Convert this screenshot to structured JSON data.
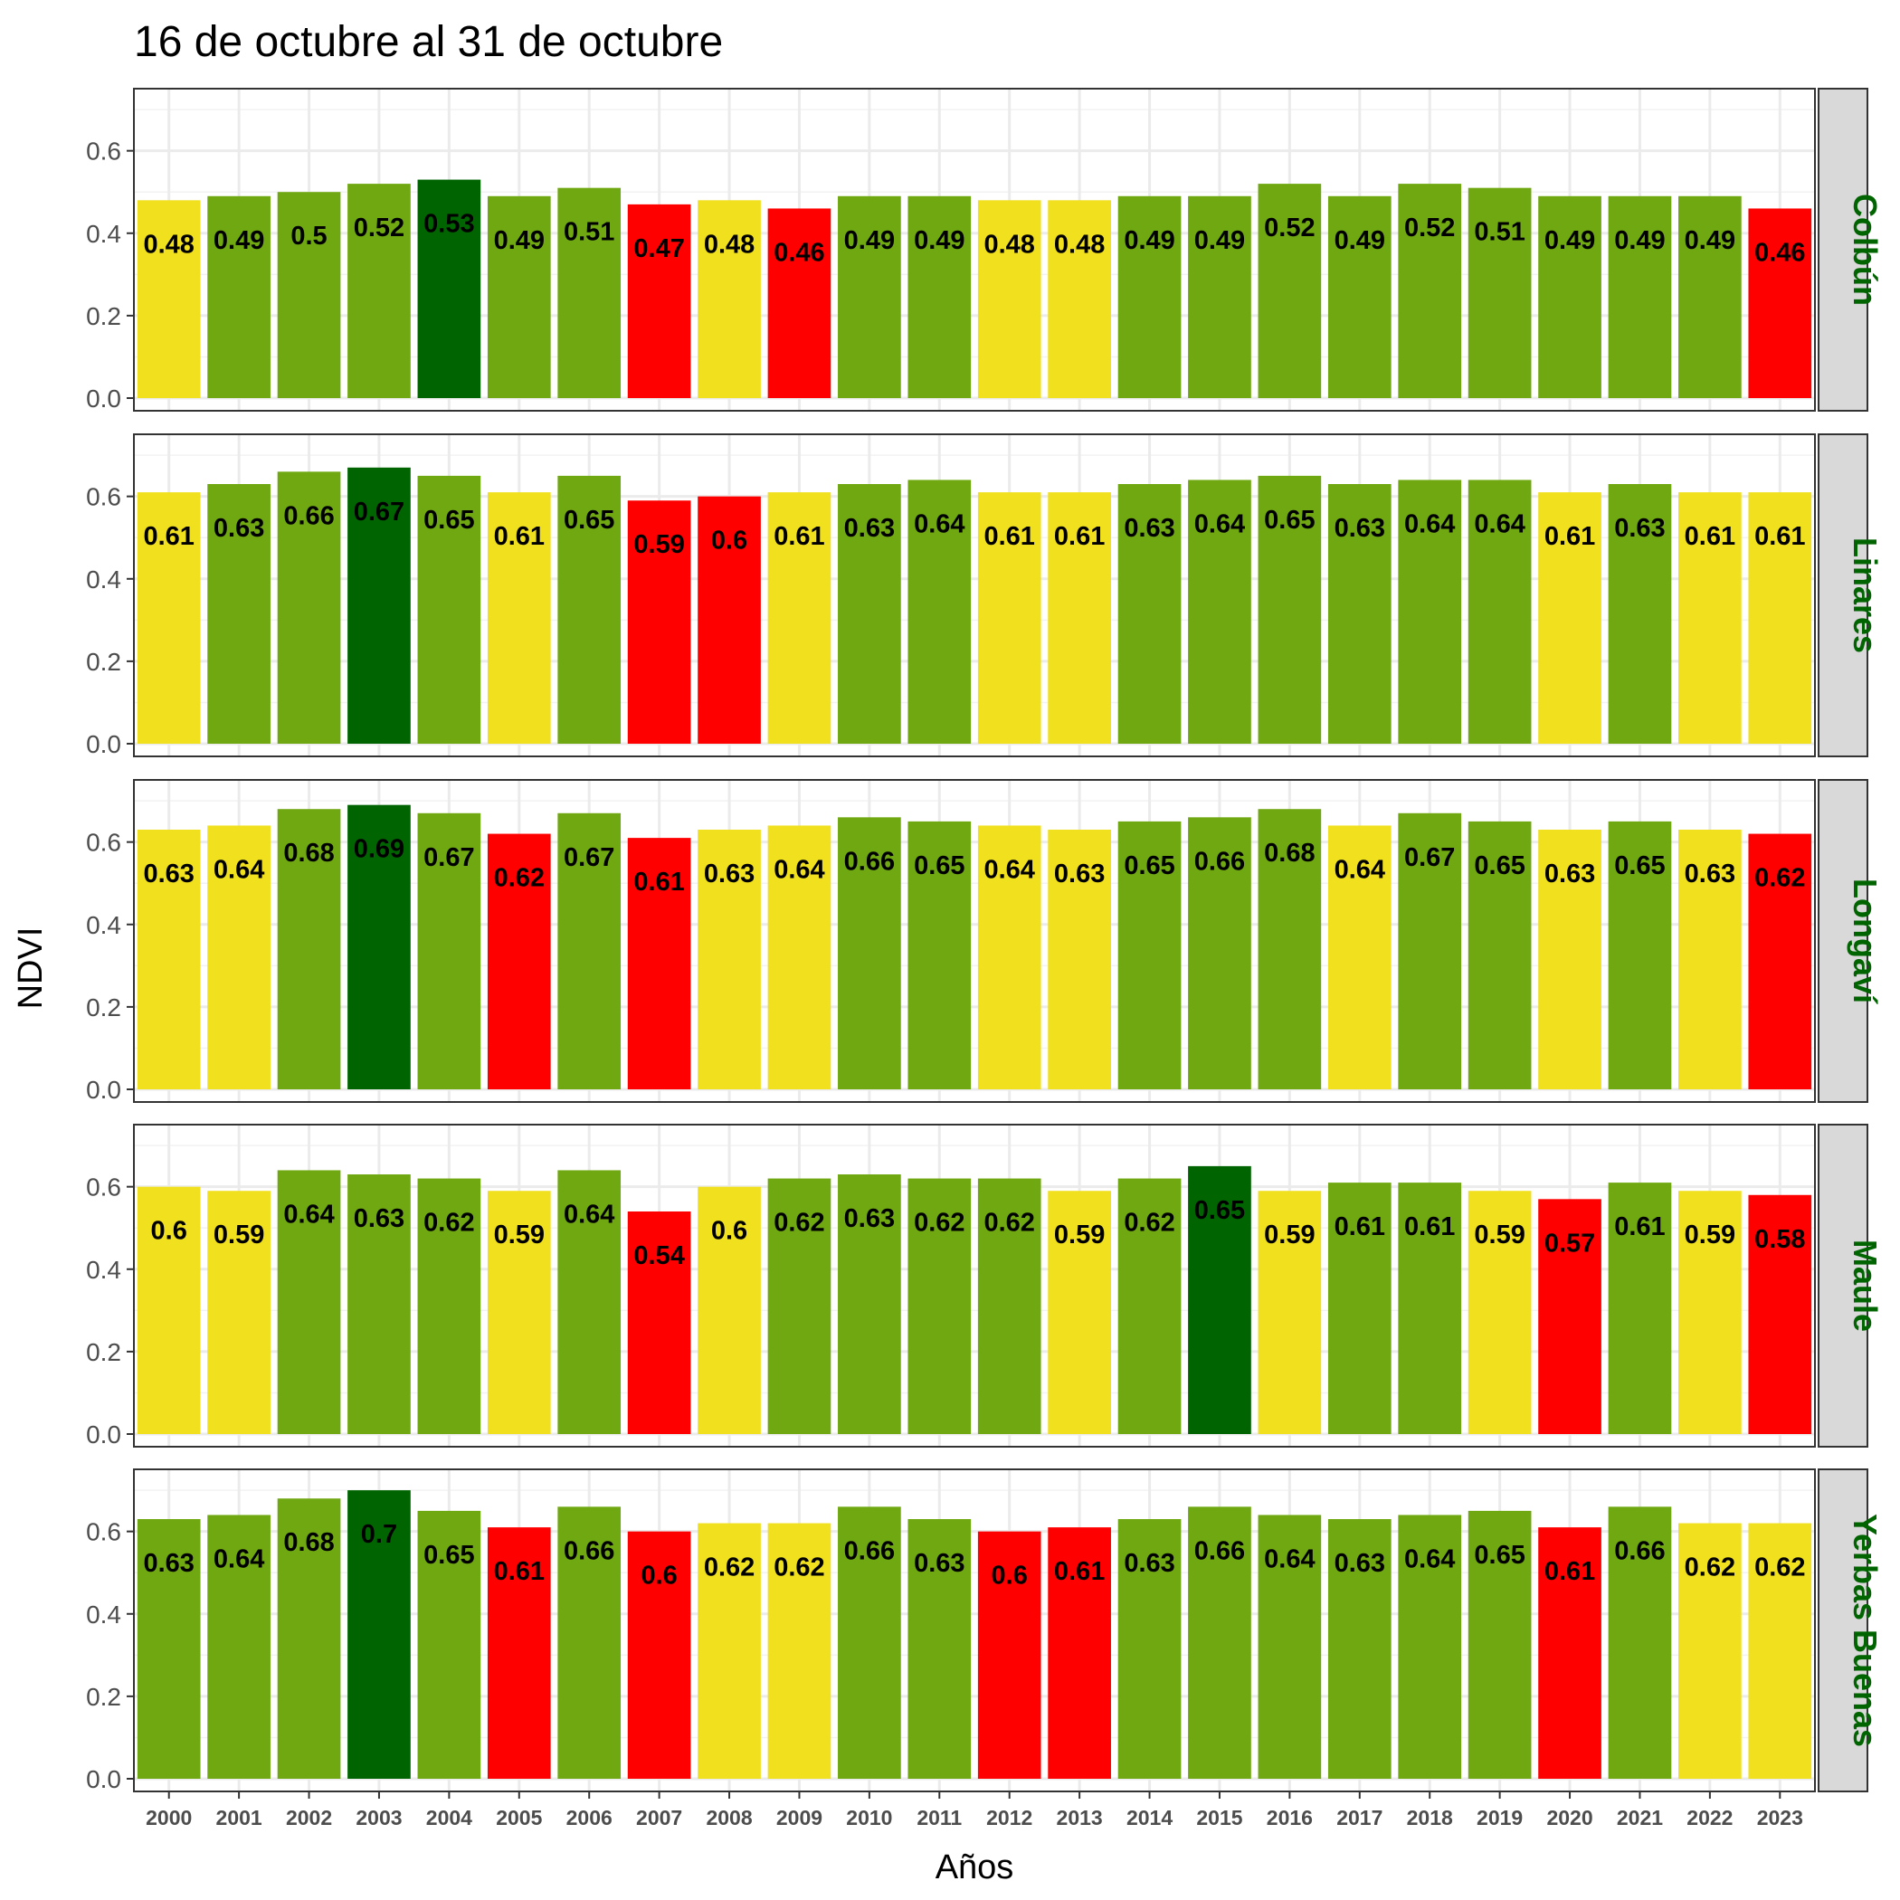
{
  "chart_data": {
    "type": "bar",
    "title": "16 de octubre al 31 de octubre",
    "xlabel": "Años",
    "ylabel": "NDVI",
    "ylim": [
      0,
      0.72
    ],
    "yticks": [
      "0.0",
      "0.2",
      "0.4",
      "0.6"
    ],
    "grid": true,
    "facet_label_color": "#006400",
    "categories": [
      "2000",
      "2001",
      "2002",
      "2003",
      "2004",
      "2005",
      "2006",
      "2007",
      "2008",
      "2009",
      "2010",
      "2011",
      "2012",
      "2013",
      "2014",
      "2015",
      "2016",
      "2017",
      "2018",
      "2019",
      "2020",
      "2021",
      "2022",
      "2023"
    ],
    "color_scale": {
      "red": "#ff0000",
      "yellow": "#f0e01e",
      "green": "#6fa811",
      "darkgreen": "#006400"
    },
    "panels": [
      {
        "name": "Colbún",
        "values": [
          0.48,
          0.49,
          0.5,
          0.52,
          0.53,
          0.49,
          0.51,
          0.47,
          0.48,
          0.46,
          0.49,
          0.49,
          0.48,
          0.48,
          0.49,
          0.49,
          0.52,
          0.49,
          0.52,
          0.51,
          0.49,
          0.49,
          0.49,
          0.46
        ],
        "labels": [
          "0.48",
          "0.49",
          "0.5",
          "0.52",
          "0.53",
          "0.49",
          "0.51",
          "0.47",
          "0.48",
          "0.46",
          "0.49",
          "0.49",
          "0.48",
          "0.48",
          "0.49",
          "0.49",
          "0.52",
          "0.49",
          "0.52",
          "0.51",
          "0.49",
          "0.49",
          "0.49",
          "0.46"
        ],
        "classes": [
          "yellow",
          "green",
          "green",
          "green",
          "darkgreen",
          "green",
          "green",
          "red",
          "yellow",
          "red",
          "green",
          "green",
          "yellow",
          "yellow",
          "green",
          "green",
          "green",
          "green",
          "green",
          "green",
          "green",
          "green",
          "green",
          "red"
        ]
      },
      {
        "name": "Linares",
        "values": [
          0.61,
          0.63,
          0.66,
          0.67,
          0.65,
          0.61,
          0.65,
          0.59,
          0.6,
          0.61,
          0.63,
          0.64,
          0.61,
          0.61,
          0.63,
          0.64,
          0.65,
          0.63,
          0.64,
          0.64,
          0.61,
          0.63,
          0.61,
          0.61
        ],
        "labels": [
          "0.61",
          "0.63",
          "0.66",
          "0.67",
          "0.65",
          "0.61",
          "0.65",
          "0.59",
          "0.6",
          "0.61",
          "0.63",
          "0.64",
          "0.61",
          "0.61",
          "0.63",
          "0.64",
          "0.65",
          "0.63",
          "0.64",
          "0.64",
          "0.61",
          "0.63",
          "0.61",
          "0.61"
        ],
        "classes": [
          "yellow",
          "green",
          "green",
          "darkgreen",
          "green",
          "yellow",
          "green",
          "red",
          "red",
          "yellow",
          "green",
          "green",
          "yellow",
          "yellow",
          "green",
          "green",
          "green",
          "green",
          "green",
          "green",
          "yellow",
          "green",
          "yellow",
          "yellow"
        ]
      },
      {
        "name": "Longaví",
        "values": [
          0.63,
          0.64,
          0.68,
          0.69,
          0.67,
          0.62,
          0.67,
          0.61,
          0.63,
          0.64,
          0.66,
          0.65,
          0.64,
          0.63,
          0.65,
          0.66,
          0.68,
          0.64,
          0.67,
          0.65,
          0.63,
          0.65,
          0.63,
          0.62
        ],
        "labels": [
          "0.63",
          "0.64",
          "0.68",
          "0.69",
          "0.67",
          "0.62",
          "0.67",
          "0.61",
          "0.63",
          "0.64",
          "0.66",
          "0.65",
          "0.64",
          "0.63",
          "0.65",
          "0.66",
          "0.68",
          "0.64",
          "0.67",
          "0.65",
          "0.63",
          "0.65",
          "0.63",
          "0.62"
        ],
        "classes": [
          "yellow",
          "yellow",
          "green",
          "darkgreen",
          "green",
          "red",
          "green",
          "red",
          "yellow",
          "yellow",
          "green",
          "green",
          "yellow",
          "yellow",
          "green",
          "green",
          "green",
          "yellow",
          "green",
          "green",
          "yellow",
          "green",
          "yellow",
          "red"
        ]
      },
      {
        "name": "Maule",
        "values": [
          0.6,
          0.59,
          0.64,
          0.63,
          0.62,
          0.59,
          0.64,
          0.54,
          0.6,
          0.62,
          0.63,
          0.62,
          0.62,
          0.59,
          0.62,
          0.65,
          0.59,
          0.61,
          0.61,
          0.59,
          0.57,
          0.61,
          0.59,
          0.58
        ],
        "labels": [
          "0.6",
          "0.59",
          "0.64",
          "0.63",
          "0.62",
          "0.59",
          "0.64",
          "0.54",
          "0.6",
          "0.62",
          "0.63",
          "0.62",
          "0.62",
          "0.59",
          "0.62",
          "0.65",
          "0.59",
          "0.61",
          "0.61",
          "0.59",
          "0.57",
          "0.61",
          "0.59",
          "0.58"
        ],
        "classes": [
          "yellow",
          "yellow",
          "green",
          "green",
          "green",
          "yellow",
          "green",
          "red",
          "yellow",
          "green",
          "green",
          "green",
          "green",
          "yellow",
          "green",
          "darkgreen",
          "yellow",
          "green",
          "green",
          "yellow",
          "red",
          "green",
          "yellow",
          "red"
        ]
      },
      {
        "name": "Yerbas Buenas",
        "values": [
          0.63,
          0.64,
          0.68,
          0.7,
          0.65,
          0.61,
          0.66,
          0.6,
          0.62,
          0.62,
          0.66,
          0.63,
          0.6,
          0.61,
          0.63,
          0.66,
          0.64,
          0.63,
          0.64,
          0.65,
          0.61,
          0.66,
          0.62,
          0.62
        ],
        "labels": [
          "0.63",
          "0.64",
          "0.68",
          "0.7",
          "0.65",
          "0.61",
          "0.66",
          "0.6",
          "0.62",
          "0.62",
          "0.66",
          "0.63",
          "0.6",
          "0.61",
          "0.63",
          "0.66",
          "0.64",
          "0.63",
          "0.64",
          "0.65",
          "0.61",
          "0.66",
          "0.62",
          "0.62"
        ],
        "classes": [
          "green",
          "green",
          "green",
          "darkgreen",
          "green",
          "red",
          "green",
          "red",
          "yellow",
          "yellow",
          "green",
          "green",
          "red",
          "red",
          "green",
          "green",
          "green",
          "green",
          "green",
          "green",
          "red",
          "green",
          "yellow",
          "yellow"
        ]
      }
    ]
  }
}
